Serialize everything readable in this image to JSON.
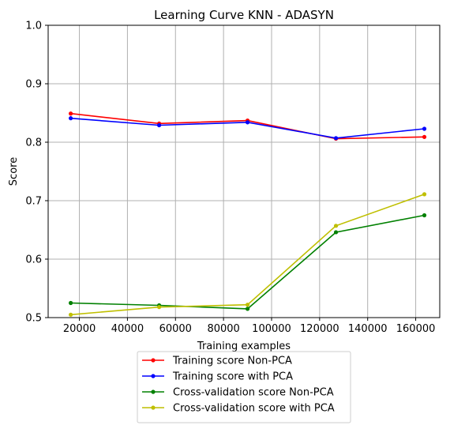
{
  "chart_data": {
    "type": "line",
    "title": "Learning Curve KNN - ADASYN",
    "xlabel": "Training examples",
    "ylabel": "Score",
    "xlim": [
      7000,
      170000
    ],
    "ylim": [
      0.5,
      1.0
    ],
    "x_ticks": [
      20000,
      40000,
      60000,
      80000,
      100000,
      120000,
      140000,
      160000
    ],
    "x_tick_labels": [
      "20000",
      "40000",
      "60000",
      "80000",
      "100000",
      "120000",
      "140000",
      "160000"
    ],
    "y_ticks": [
      0.5,
      0.6,
      0.7,
      0.8,
      0.9,
      1.0
    ],
    "y_tick_labels": [
      "0.5",
      "0.6",
      "0.7",
      "0.8",
      "0.9",
      "1.0"
    ],
    "grid": true,
    "legend_position": "below plot, centered",
    "x": [
      16400,
      53200,
      90000,
      126800,
      163600
    ],
    "series": [
      {
        "name": "Training score Non-PCA",
        "color": "#ff0000",
        "values": [
          0.849,
          0.832,
          0.837,
          0.806,
          0.809
        ]
      },
      {
        "name": "Training score with PCA",
        "color": "#0000ff",
        "values": [
          0.841,
          0.829,
          0.834,
          0.807,
          0.823
        ]
      },
      {
        "name": "Cross-validation score Non-PCA",
        "color": "#008000",
        "values": [
          0.525,
          0.521,
          0.515,
          0.646,
          0.675
        ]
      },
      {
        "name": "Cross-validation score with PCA",
        "color": "#bfbf00",
        "values": [
          0.505,
          0.518,
          0.522,
          0.657,
          0.711
        ]
      }
    ]
  }
}
